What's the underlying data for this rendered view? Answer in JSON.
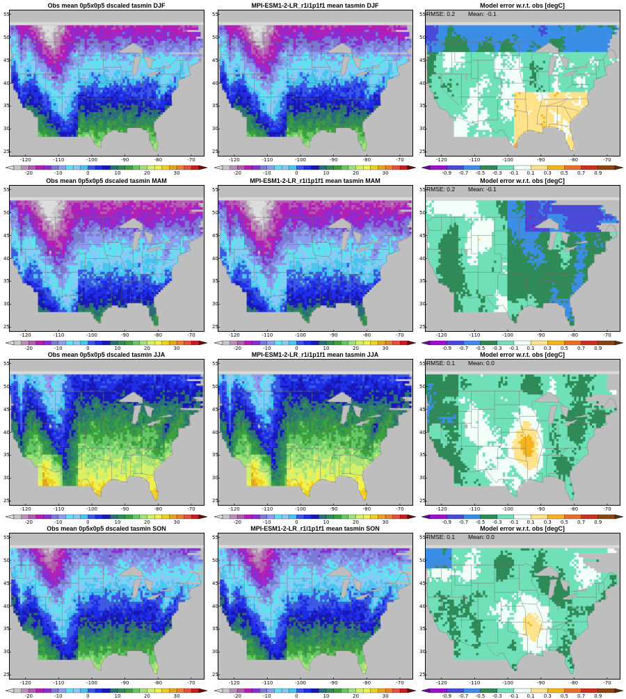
{
  "figure": {
    "rows": [
      {
        "season": "DJF",
        "panels": [
          {
            "title": "Obs mean 0p5x0p5 dscaled tasmin DJF",
            "kind": "abs"
          },
          {
            "title": "MPI-ESM1-2-LR_r1i1p1f1 mean tasmin DJF",
            "kind": "abs"
          },
          {
            "title": "Model error w.r.t. obs [degC]",
            "kind": "err",
            "rmse_label": "RMSE: 0.2",
            "mean_label": "Mean: -0.1"
          }
        ]
      },
      {
        "season": "MAM",
        "panels": [
          {
            "title": "Obs mean 0p5x0p5 dscaled tasmin MAM",
            "kind": "abs"
          },
          {
            "title": "MPI-ESM1-2-LR_r1i1p1f1 mean tasmin MAM",
            "kind": "abs"
          },
          {
            "title": "Model error w.r.t. obs [degC]",
            "kind": "err",
            "rmse_label": "RMSE: 0.2",
            "mean_label": "Mean: -0.1"
          }
        ]
      },
      {
        "season": "JJA",
        "panels": [
          {
            "title": "Obs mean 0p5x0p5 dscaled tasmin JJA",
            "kind": "abs"
          },
          {
            "title": "MPI-ESM1-2-LR_r1i1p1f1 mean tasmin JJA",
            "kind": "abs"
          },
          {
            "title": "Model error w.r.t. obs [degC]",
            "kind": "err",
            "rmse_label": "RMSE: 0.1",
            "mean_label": "Mean: 0.0"
          }
        ]
      },
      {
        "season": "SON",
        "panels": [
          {
            "title": "Obs mean 0p5x0p5 dscaled tasmin SON",
            "kind": "abs"
          },
          {
            "title": "MPI-ESM1-2-LR_r1i1p1f1 mean tasmin SON",
            "kind": "abs"
          },
          {
            "title": "Model error w.r.t. obs [degC]",
            "kind": "err",
            "rmse_label": "RMSE: 0.1",
            "mean_label": "Mean: 0.0"
          }
        ]
      }
    ],
    "axes": {
      "lon_ticks": [
        -120,
        -110,
        -100,
        -90,
        -80,
        -70
      ],
      "lat_ticks": [
        25,
        30,
        35,
        40,
        45,
        50,
        55
      ],
      "lon_range": [
        -125,
        -66
      ],
      "lat_range": [
        24,
        56
      ]
    },
    "colorbar_abs": {
      "labels": [
        "-20",
        "-10",
        "0",
        "10",
        "20",
        "30"
      ],
      "range": [
        -25,
        30
      ],
      "step": 2.5,
      "colors": [
        "#c8c8c8",
        "#b98fb8",
        "#b45bb4",
        "#b41eb4",
        "#8c2cd2",
        "#7a7ad6",
        "#8e9cf0",
        "#5ee2ef",
        "#88c9f6",
        "#49c6f0",
        "#3a58e6",
        "#1e2ee6",
        "#1818b8",
        "#2a6e78",
        "#2e8c58",
        "#3ca03c",
        "#64c864",
        "#a0e078",
        "#d2f06c",
        "#f0f050",
        "#f0d21e",
        "#e6a51e",
        "#e68232",
        "#e6503c",
        "#c81e1e"
      ],
      "under_color": "#dddddd",
      "over_color": "#6e0a0a"
    },
    "colorbar_err": {
      "labels": [
        "-0.9",
        "-0.7",
        "-0.5",
        "-0.3",
        "-0.1",
        "0.1",
        "0.3",
        "0.5",
        "0.7",
        "0.9"
      ],
      "colors": [
        "#9b0fcd",
        "#4a4ad8",
        "#3a8ee6",
        "#2e8b57",
        "#6fe0b8",
        "#f2fff8",
        "#ffe28a",
        "#f5b41e",
        "#e66e28",
        "#c8321e",
        "#8b4513"
      ],
      "under_color": "#6a0aa0",
      "over_color": "#5a3010"
    },
    "colors": {
      "land_mask": "#bebebe",
      "ocean": "#bebebe",
      "frame": "#000000",
      "border_lines": "#6e6e6e"
    }
  }
}
